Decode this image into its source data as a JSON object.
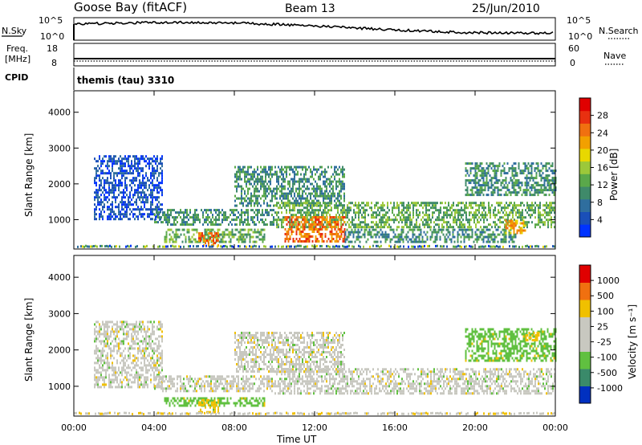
{
  "header": {
    "station": "Goose Bay (fitACF)",
    "beam": "Beam 13",
    "date": "25/Jun/2010"
  },
  "top_panels": {
    "nsky_label": "N.Sky",
    "nsky_ticks": [
      "10^5",
      "10^0"
    ],
    "nsearch_label": "N.Search",
    "nsearch_ticks": [
      "10^5",
      "10^0"
    ],
    "freq_label": "Freq.",
    "freq_unit": "[MHz]",
    "freq_ticks": [
      "18",
      "8"
    ],
    "nave_label": "Nave",
    "nave_ticks": [
      "60",
      "0"
    ],
    "cpid_label": "CPID",
    "cpid_text": "themis (tau) 3310"
  },
  "chart_data": [
    {
      "type": "heatmap",
      "name": "power",
      "ylabel": "Slant Range [km]",
      "yticks": [
        "4000",
        "3000",
        "2000",
        "1000"
      ],
      "ylim": [
        180,
        4600
      ],
      "xlim": [
        0,
        24
      ],
      "colorbar_label": "Power [dB]",
      "colorbar_ticks": [
        "28",
        "24",
        "20",
        "16",
        "12",
        "8",
        "4"
      ],
      "colorbar_colors": [
        "#0033ff",
        "#1a4fb8",
        "#2f6e9e",
        "#3f8a6a",
        "#5aa84a",
        "#9cc83a",
        "#e8d800",
        "#f2a000",
        "#f07010",
        "#e83010",
        "#e00000"
      ],
      "regions": [
        {
          "x0": 1.0,
          "x1": 4.4,
          "y0": 1000,
          "y1": 2800,
          "level": 1
        },
        {
          "x0": 4.0,
          "x1": 10.0,
          "y0": 850,
          "y1": 1300,
          "level": 3
        },
        {
          "x0": 4.5,
          "x1": 9.5,
          "y0": 350,
          "y1": 750,
          "level": 4
        },
        {
          "x0": 6.2,
          "x1": 7.2,
          "y0": 300,
          "y1": 650,
          "level": 8
        },
        {
          "x0": 8.0,
          "x1": 13.5,
          "y0": 1400,
          "y1": 2500,
          "level": 3
        },
        {
          "x0": 10.0,
          "x1": 24.0,
          "y0": 800,
          "y1": 1500,
          "level": 4
        },
        {
          "x0": 10.5,
          "x1": 13.5,
          "y0": 400,
          "y1": 1100,
          "level": 8
        },
        {
          "x0": 13.5,
          "x1": 22.0,
          "y0": 350,
          "y1": 750,
          "level": 3
        },
        {
          "x0": 19.5,
          "x1": 24.0,
          "y0": 1700,
          "y1": 2600,
          "level": 3
        },
        {
          "x0": 21.5,
          "x1": 22.5,
          "y0": 600,
          "y1": 1000,
          "level": 7
        }
      ]
    },
    {
      "type": "heatmap",
      "name": "velocity",
      "ylabel": "Slant Range [km]",
      "yticks": [
        "4000",
        "3000",
        "2000",
        "1000"
      ],
      "ylim": [
        180,
        4600
      ],
      "xlim": [
        0,
        24
      ],
      "xticks": [
        "00:00",
        "04:00",
        "08:00",
        "12:00",
        "16:00",
        "20:00",
        "00:00"
      ],
      "xlabel": "Time UT",
      "colorbar_label": "Velocity [m s⁻¹]",
      "colorbar_ticks": [
        "1000",
        "500",
        "100",
        "25",
        "-25",
        "-100",
        "-500",
        "-1000"
      ],
      "colorbar_colors": [
        "#0030c0",
        "#3a8a6a",
        "#60c040",
        "#c8c8c0",
        "#c8c8c0",
        "#f0c000",
        "#f07010",
        "#e00000"
      ],
      "regions": [
        {
          "x0": 1.0,
          "x1": 4.4,
          "y0": 1000,
          "y1": 2800,
          "color": "#c8c8c0"
        },
        {
          "x0": 4.0,
          "x1": 10.0,
          "y0": 850,
          "y1": 1300,
          "color": "#c8c8c0"
        },
        {
          "x0": 4.5,
          "x1": 9.5,
          "y0": 500,
          "y1": 700,
          "color": "#60c040"
        },
        {
          "x0": 6.2,
          "x1": 7.2,
          "y0": 300,
          "y1": 650,
          "color": "#f0c000"
        },
        {
          "x0": 8.0,
          "x1": 13.5,
          "y0": 1400,
          "y1": 2500,
          "color": "#c8c8c0"
        },
        {
          "x0": 10.0,
          "x1": 24.0,
          "y0": 800,
          "y1": 1500,
          "color": "#c8c8c0"
        },
        {
          "x0": 19.5,
          "x1": 24.0,
          "y0": 1700,
          "y1": 2600,
          "color": "#60c040"
        },
        {
          "x0": 22.5,
          "x1": 23.2,
          "y0": 2300,
          "y1": 2500,
          "color": "#f0c000"
        }
      ]
    }
  ]
}
